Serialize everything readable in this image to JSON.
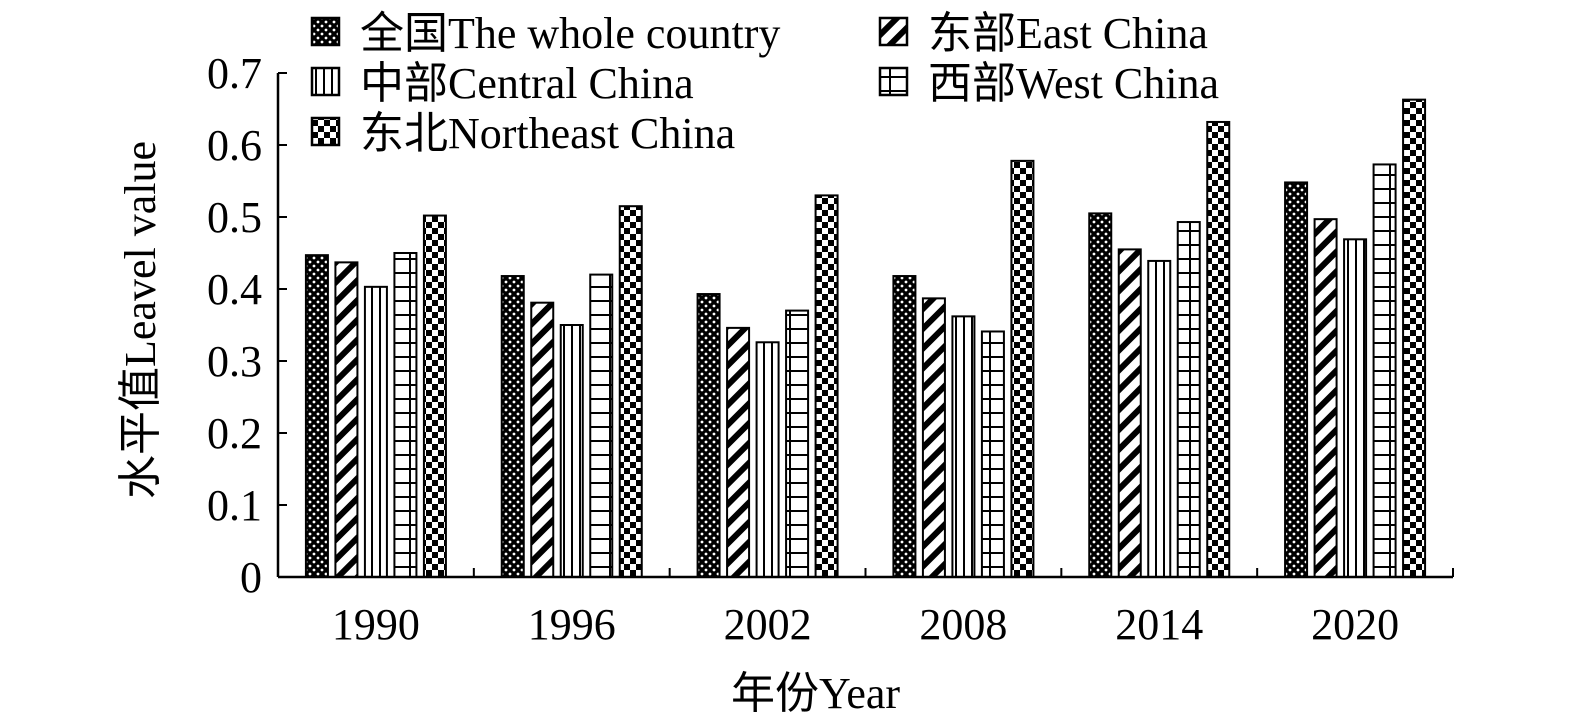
{
  "chart_data": {
    "type": "bar",
    "xlabel": "年份Year",
    "ylabel": "水平值Leavel value",
    "categories": [
      "1990",
      "1996",
      "2002",
      "2008",
      "2014",
      "2020"
    ],
    "ylim": [
      0,
      0.7
    ],
    "yticks": [
      "0",
      "0.1",
      "0.2",
      "0.3",
      "0.4",
      "0.5",
      "0.6",
      "0.7"
    ],
    "grid": false,
    "legend_position": "top",
    "series": [
      {
        "name": "全国The whole country",
        "pattern": "dots",
        "values": [
          0.447,
          0.418,
          0.393,
          0.418,
          0.505,
          0.548
        ]
      },
      {
        "name": "东部East China",
        "pattern": "diagonal",
        "values": [
          0.437,
          0.381,
          0.346,
          0.387,
          0.455,
          0.497
        ]
      },
      {
        "name": "中部Central China",
        "pattern": "vertical",
        "values": [
          0.403,
          0.35,
          0.326,
          0.362,
          0.439,
          0.469
        ]
      },
      {
        "name": "西部West China",
        "pattern": "grid",
        "values": [
          0.45,
          0.42,
          0.37,
          0.341,
          0.493,
          0.573
        ]
      },
      {
        "name": "东北Northeast China",
        "pattern": "checker",
        "values": [
          0.502,
          0.515,
          0.53,
          0.578,
          0.632,
          0.663
        ]
      }
    ]
  }
}
